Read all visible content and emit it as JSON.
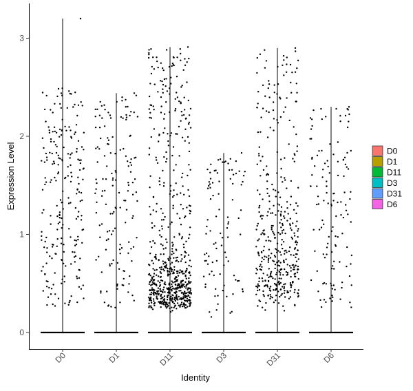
{
  "chart_data": {
    "type": "violin-jitter",
    "title": "",
    "xlabel": "Identity",
    "ylabel": "Expression Level",
    "ylim": [
      -0.18,
      3.33
    ],
    "yticks": [
      0,
      1,
      2,
      3
    ],
    "grid": false,
    "legend_placement": "right",
    "categories": [
      "D0",
      "D1",
      "D11",
      "D3",
      "D31",
      "D6"
    ],
    "series": [
      {
        "name": "D0",
        "color": "#F8766D",
        "max": 3.2,
        "nonzero_count": 230
      },
      {
        "name": "D1",
        "color": "#B79F00",
        "max": 2.44,
        "nonzero_count": 150
      },
      {
        "name": "D11",
        "color": "#00BA38",
        "max": 2.91,
        "nonzero_count": 650
      },
      {
        "name": "D3",
        "color": "#00BFC4",
        "max": 1.83,
        "nonzero_count": 95
      },
      {
        "name": "D31",
        "color": "#619CFF",
        "max": 2.9,
        "nonzero_count": 420
      },
      {
        "name": "D6",
        "color": "#F564E3",
        "max": 2.3,
        "nonzero_count": 130
      }
    ]
  }
}
